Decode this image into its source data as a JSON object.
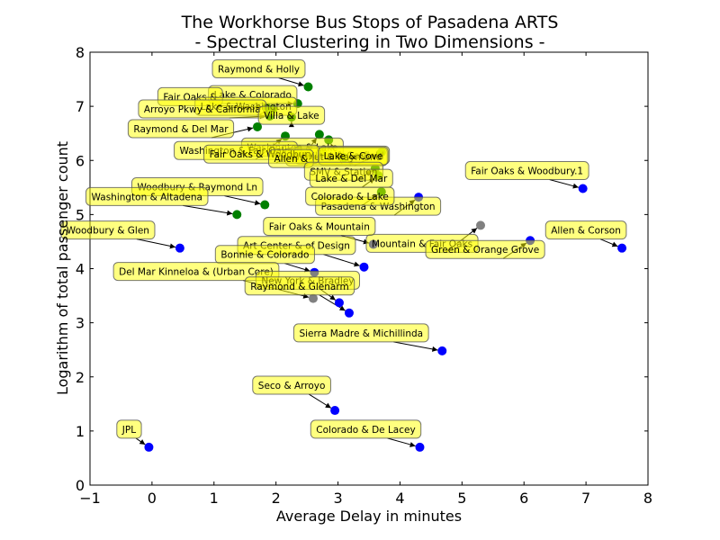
{
  "chart_data": {
    "type": "scatter",
    "title": [
      "The Workhorse Bus Stops of Pasadena ARTS",
      " - Spectral Clustering in Two Dimensions -"
    ],
    "xlabel": "Average Delay in minutes",
    "ylabel": "Logarithm of total passenger count",
    "xlim": [
      -1,
      8
    ],
    "ylim": [
      0,
      8
    ],
    "xticks": [
      "−1",
      "0",
      "1",
      "2",
      "3",
      "4",
      "5",
      "6",
      "7",
      "8"
    ],
    "yticks": [
      "0",
      "1",
      "2",
      "3",
      "4",
      "5",
      "6",
      "7",
      "8"
    ],
    "grid": false,
    "colors": {
      "blue": "#0000ff",
      "green": "#008000",
      "gray": "#808080",
      "label_fill": "#ffff00"
    },
    "points": [
      {
        "label": "Raymond & Holly",
        "x": 2.52,
        "y": 7.36,
        "color": "green"
      },
      {
        "label": "Lake & Colorado",
        "x": 2.35,
        "y": 7.05,
        "color": "green"
      },
      {
        "label": "Fair Oaks & ",
        "x": 1.85,
        "y": 6.98,
        "color": "green"
      },
      {
        "label": "Lake & Washington",
        "x": 1.95,
        "y": 6.95,
        "color": "green"
      },
      {
        "label": "Arroyo Pkwy & California",
        "x": 1.9,
        "y": 6.82,
        "color": "green"
      },
      {
        "label": "Villa & Lake",
        "x": 2.25,
        "y": 6.8,
        "color": "green"
      },
      {
        "label": "Raymond & Del Mar",
        "x": 1.7,
        "y": 6.62,
        "color": "green"
      },
      {
        "label": "Washington & Lake",
        "x": 2.7,
        "y": 6.48,
        "color": "green"
      },
      {
        "label": "Washington & Fair Oaks",
        "x": 2.15,
        "y": 6.45,
        "color": "green"
      },
      {
        "label": "Walnut & Garfield",
        "x": 2.85,
        "y": 6.38,
        "color": "green"
      },
      {
        "label": "Walnut & Raymond",
        "x": 3.7,
        "y": 6.15,
        "color": "green"
      },
      {
        "label": "Fair Oaks & Woodbury",
        "x": 2.35,
        "y": 6.2,
        "color": "green"
      },
      {
        "label": "Allen & ",
        "x": 2.75,
        "y": 6.15,
        "color": "green"
      },
      {
        "label": "Lake & Cove",
        "x": 3.1,
        "y": 6.05,
        "color": "green"
      },
      {
        "label": "SMV & Station",
        "x": 3.6,
        "y": 5.85,
        "color": "green"
      },
      {
        "label": "Lake & Del Mar",
        "x": 3.65,
        "y": 5.72,
        "color": "green"
      },
      {
        "label": "Pasadena & Washington",
        "x": 4.3,
        "y": 5.32,
        "color": "blue"
      },
      {
        "label": "Colorado & Lake",
        "x": 3.7,
        "y": 5.42,
        "color": "green"
      },
      {
        "label": "Fair Oaks & Woodbury.1",
        "x": 6.95,
        "y": 5.48,
        "color": "blue"
      },
      {
        "label": "Woodbury & Raymond Ln",
        "x": 1.82,
        "y": 5.18,
        "color": "green"
      },
      {
        "label": "Washington & Altadena",
        "x": 1.37,
        "y": 5.0,
        "color": "green"
      },
      {
        "label": "Mountain & Fair Oaks",
        "x": 5.3,
        "y": 4.8,
        "color": "gray"
      },
      {
        "label": "Green & Orange Grove",
        "x": 6.1,
        "y": 4.52,
        "color": "blue"
      },
      {
        "label": "Allen & Corson",
        "x": 7.58,
        "y": 4.38,
        "color": "blue"
      },
      {
        "label": "Woodbury & Glen",
        "x": 0.45,
        "y": 4.38,
        "color": "blue"
      },
      {
        "label": "Fair Oaks & Mountain",
        "x": 3.57,
        "y": 4.45,
        "color": "blue"
      },
      {
        "label": "Art Center & of Design",
        "x": 3.42,
        "y": 4.03,
        "color": "blue"
      },
      {
        "label": "Bonnie & Colorado",
        "x": 2.62,
        "y": 3.93,
        "color": "blue"
      },
      {
        "label": "Del Mar Kinneloa & (Urban Core)",
        "x": 2.6,
        "y": 3.45,
        "color": "gray"
      },
      {
        "label": "New York & Bradley",
        "x": 3.02,
        "y": 3.37,
        "color": "blue"
      },
      {
        "label": "Raymond & Glenarm",
        "x": 3.18,
        "y": 3.18,
        "color": "blue"
      },
      {
        "label": "Sierra Madre & Michillinda",
        "x": 4.68,
        "y": 2.48,
        "color": "blue"
      },
      {
        "label": "Seco & Arroyo",
        "x": 2.95,
        "y": 1.38,
        "color": "blue"
      },
      {
        "label": "Colorado & De Lacey",
        "x": 4.32,
        "y": 0.7,
        "color": "blue"
      },
      {
        "label": "JPL",
        "x": -0.05,
        "y": 0.7,
        "color": "blue"
      }
    ]
  }
}
